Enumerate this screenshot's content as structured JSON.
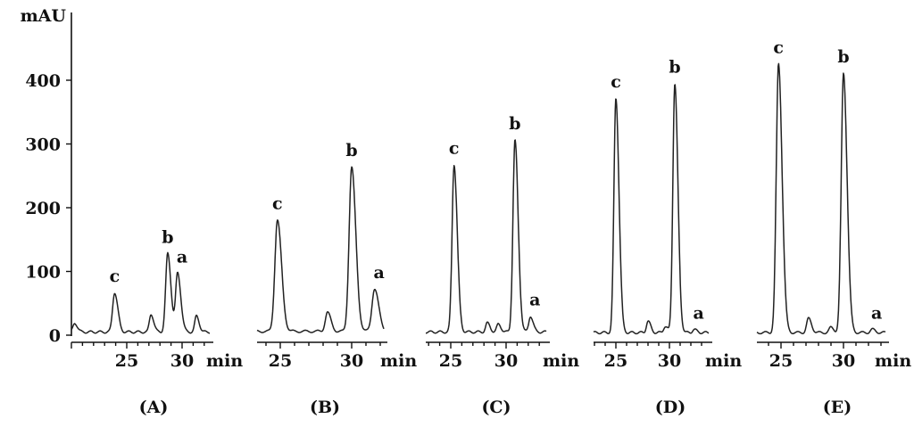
{
  "chart_data": {
    "type": "line",
    "y_unit": "mAU",
    "x_unit": "min",
    "y_ticks": [
      0,
      100,
      200,
      300,
      400
    ],
    "x_ticks": [
      25,
      30
    ],
    "panels": [
      {
        "label": "(A)",
        "baseline": 5,
        "peaks": [
          {
            "label": "c",
            "rt": 23.9,
            "height": 62
          },
          {
            "label": "b",
            "rt": 28.7,
            "height": 123
          },
          {
            "label": "a",
            "rt": 29.6,
            "height": 92
          }
        ],
        "minor_peaks": [
          {
            "rt": 20.3,
            "height": 14
          },
          {
            "rt": 27.2,
            "height": 28
          },
          {
            "rt": 31.3,
            "height": 25
          }
        ]
      },
      {
        "label": "(B)",
        "baseline": 6,
        "peaks": [
          {
            "label": "c",
            "rt": 24.8,
            "height": 175
          },
          {
            "label": "b",
            "rt": 30.0,
            "height": 258
          },
          {
            "label": "a",
            "rt": 31.6,
            "height": 67
          }
        ],
        "minor_peaks": [
          {
            "rt": 28.3,
            "height": 30
          }
        ]
      },
      {
        "label": "(C)",
        "baseline": 5,
        "peaks": [
          {
            "label": "c",
            "rt": 25.3,
            "height": 263
          },
          {
            "label": "b",
            "rt": 30.8,
            "height": 301
          },
          {
            "label": "a",
            "rt": 32.2,
            "height": 25
          }
        ],
        "minor_peaks": [
          {
            "rt": 28.3,
            "height": 14
          },
          {
            "rt": 29.3,
            "height": 12
          }
        ]
      },
      {
        "label": "(D)",
        "baseline": 4,
        "peaks": [
          {
            "label": "c",
            "rt": 25.0,
            "height": 368
          },
          {
            "label": "b",
            "rt": 30.5,
            "height": 391
          },
          {
            "label": "a",
            "rt": 32.3,
            "height": 5
          }
        ],
        "minor_peaks": [
          {
            "rt": 28.0,
            "height": 18
          },
          {
            "rt": 29.6,
            "height": 10
          }
        ]
      },
      {
        "label": "(E)",
        "baseline": 4,
        "peaks": [
          {
            "label": "c",
            "rt": 24.8,
            "height": 422
          },
          {
            "label": "b",
            "rt": 30.0,
            "height": 407
          },
          {
            "label": "a",
            "rt": 32.3,
            "height": 5
          }
        ],
        "minor_peaks": [
          {
            "rt": 27.2,
            "height": 22
          },
          {
            "rt": 29.0,
            "height": 8
          }
        ]
      }
    ]
  }
}
